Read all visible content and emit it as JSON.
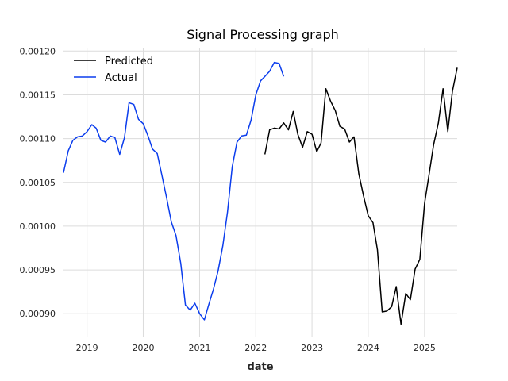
{
  "chart_data": {
    "type": "line",
    "title": "Signal Processing graph",
    "xlabel": "date",
    "ylabel": "",
    "x_tick_labels": [
      "2019",
      "2020",
      "2021",
      "2022",
      "2023",
      "2024",
      "2025"
    ],
    "y_tick_labels": [
      "0.00090",
      "0.00095",
      "0.00100",
      "0.00105",
      "0.00110",
      "0.00115",
      "0.00120"
    ],
    "xlim": [
      "2018-08-01",
      "2025-08-01"
    ],
    "ylim": [
      0.000873,
      0.001203
    ],
    "grid": true,
    "legend_position": "top-left",
    "series": [
      {
        "name": "Predicted",
        "color": "#000000",
        "points": [
          [
            "2022-03-01",
            0.001082
          ],
          [
            "2022-04-01",
            0.00111
          ],
          [
            "2022-05-01",
            0.001112
          ],
          [
            "2022-06-01",
            0.001111
          ],
          [
            "2022-07-01",
            0.001118
          ],
          [
            "2022-08-01",
            0.00111
          ],
          [
            "2022-09-01",
            0.001131
          ],
          [
            "2022-10-01",
            0.001105
          ],
          [
            "2022-11-01",
            0.00109
          ],
          [
            "2022-12-01",
            0.001108
          ],
          [
            "2023-01-01",
            0.001105
          ],
          [
            "2023-02-01",
            0.001085
          ],
          [
            "2023-03-01",
            0.001095
          ],
          [
            "2023-04-01",
            0.001157
          ],
          [
            "2023-05-01",
            0.001143
          ],
          [
            "2023-06-01",
            0.001132
          ],
          [
            "2023-07-01",
            0.001114
          ],
          [
            "2023-08-01",
            0.001111
          ],
          [
            "2023-09-01",
            0.001096
          ],
          [
            "2023-10-01",
            0.001102
          ],
          [
            "2023-11-01",
            0.00106
          ],
          [
            "2023-12-01",
            0.001035
          ],
          [
            "2024-01-01",
            0.001012
          ],
          [
            "2024-02-01",
            0.001004
          ],
          [
            "2024-03-01",
            0.000973
          ],
          [
            "2024-04-01",
            0.000902
          ],
          [
            "2024-05-01",
            0.000903
          ],
          [
            "2024-06-01",
            0.000908
          ],
          [
            "2024-07-01",
            0.000931
          ],
          [
            "2024-08-01",
            0.000888
          ],
          [
            "2024-09-01",
            0.000923
          ],
          [
            "2024-10-01",
            0.000916
          ],
          [
            "2024-11-01",
            0.000951
          ],
          [
            "2024-12-01",
            0.000962
          ],
          [
            "2025-01-01",
            0.001026
          ],
          [
            "2025-02-01",
            0.001061
          ],
          [
            "2025-03-01",
            0.001093
          ],
          [
            "2025-04-01",
            0.001118
          ],
          [
            "2025-05-01",
            0.001157
          ],
          [
            "2025-06-01",
            0.001108
          ],
          [
            "2025-07-01",
            0.001154
          ],
          [
            "2025-08-01",
            0.001181
          ]
        ]
      },
      {
        "name": "Actual",
        "color": "#0b3ded",
        "points": [
          [
            "2018-08-01",
            0.001061
          ],
          [
            "2018-09-01",
            0.001086
          ],
          [
            "2018-10-01",
            0.001098
          ],
          [
            "2018-11-01",
            0.001102
          ],
          [
            "2018-12-01",
            0.001103
          ],
          [
            "2019-01-01",
            0.001108
          ],
          [
            "2019-02-01",
            0.001116
          ],
          [
            "2019-03-01",
            0.001112
          ],
          [
            "2019-04-01",
            0.001098
          ],
          [
            "2019-05-01",
            0.001096
          ],
          [
            "2019-06-01",
            0.001103
          ],
          [
            "2019-07-01",
            0.001101
          ],
          [
            "2019-08-01",
            0.001082
          ],
          [
            "2019-09-01",
            0.001101
          ],
          [
            "2019-10-01",
            0.001141
          ],
          [
            "2019-11-01",
            0.001139
          ],
          [
            "2019-12-01",
            0.001122
          ],
          [
            "2020-01-01",
            0.001117
          ],
          [
            "2020-02-01",
            0.001103
          ],
          [
            "2020-03-01",
            0.001088
          ],
          [
            "2020-04-01",
            0.001083
          ],
          [
            "2020-05-01",
            0.001058
          ],
          [
            "2020-06-01",
            0.001032
          ],
          [
            "2020-07-01",
            0.001005
          ],
          [
            "2020-08-01",
            0.000989
          ],
          [
            "2020-09-01",
            0.000957
          ],
          [
            "2020-10-01",
            0.00091
          ],
          [
            "2020-11-01",
            0.000904
          ],
          [
            "2020-12-01",
            0.000912
          ],
          [
            "2021-01-01",
            0.0009
          ],
          [
            "2021-02-01",
            0.000893
          ],
          [
            "2021-03-01",
            0.00091
          ],
          [
            "2021-04-01",
            0.000928
          ],
          [
            "2021-05-01",
            0.000949
          ],
          [
            "2021-06-01",
            0.000978
          ],
          [
            "2021-07-01",
            0.001016
          ],
          [
            "2021-08-01",
            0.001068
          ],
          [
            "2021-09-01",
            0.001096
          ],
          [
            "2021-10-01",
            0.001103
          ],
          [
            "2021-11-01",
            0.001104
          ],
          [
            "2021-12-01",
            0.001121
          ],
          [
            "2022-01-01",
            0.00115
          ],
          [
            "2022-02-01",
            0.001166
          ],
          [
            "2022-03-01",
            0.001171
          ],
          [
            "2022-04-01",
            0.001177
          ],
          [
            "2022-05-01",
            0.001187
          ],
          [
            "2022-06-01",
            0.001186
          ],
          [
            "2022-07-01",
            0.001171
          ]
        ]
      }
    ]
  }
}
